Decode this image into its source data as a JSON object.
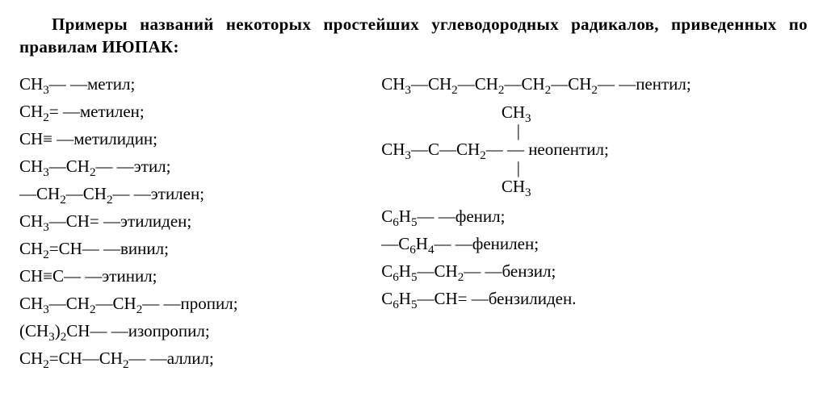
{
  "title": {
    "line1_indent": true,
    "text": "Примеры названий некоторых простейших углеводородных радикалов, приведенных по правилам ИЮПАК:"
  },
  "left_entries": [
    {
      "formula_html": "CH<sub>3</sub>— — ",
      "name": "метил;"
    },
    {
      "formula_html": "CH<sub>2</sub>= — ",
      "name": "метилен;"
    },
    {
      "formula_html": "CH≡ — ",
      "name": "метилидин;"
    },
    {
      "formula_html": "CH<sub>3</sub>—CH<sub>2</sub>— — ",
      "name": "этил;"
    },
    {
      "formula_html": "—CH<sub>2</sub>—CH<sub>2</sub>— — ",
      "name": "этилен;"
    },
    {
      "formula_html": "CH<sub>3</sub>—CH= — ",
      "name": "этилиден;"
    },
    {
      "formula_html": "CH<sub>2</sub>=CH— — ",
      "name": "винил;"
    },
    {
      "formula_html": "CH≡C— — ",
      "name": "этинил;"
    },
    {
      "formula_html": "CH<sub>3</sub>—CH<sub>2</sub>—CH<sub>2</sub>— — ",
      "name": "пропил;"
    },
    {
      "formula_html": "(CH<sub>3</sub>)<sub>2</sub>CH— — ",
      "name": "изопропил;"
    },
    {
      "formula_html": "CH<sub>2</sub>=CH—CH<sub>2</sub>— — ",
      "name": "аллил;"
    }
  ],
  "right_entries": [
    {
      "formula_html": "CH<sub>3</sub>—CH<sub>2</sub>—CH<sub>2</sub>—CH<sub>2</sub>—CH<sub>2</sub>— — ",
      "name": "пентил;"
    },
    {
      "type": "struct",
      "name": "неопентил;",
      "struct_rows": [
        "          CH<sub>3</sub>",
        "           |",
        "CH<sub>3</sub>—C—CH<sub>2</sub>— — ",
        "           |",
        "          CH<sub>3</sub>"
      ]
    },
    {
      "formula_html": "C<sub>6</sub>H<sub>5</sub>— — ",
      "name": "фенил;"
    },
    {
      "formula_html": "—C<sub>6</sub>H<sub>4</sub>— — ",
      "name": "фенилен;"
    },
    {
      "formula_html": "C<sub>6</sub>H<sub>5</sub>—CH<sub>2</sub>— — ",
      "name": "бензил;"
    },
    {
      "formula_html": "C<sub>6</sub>H<sub>5</sub>—CH= — ",
      "name": "бензилиден."
    }
  ]
}
